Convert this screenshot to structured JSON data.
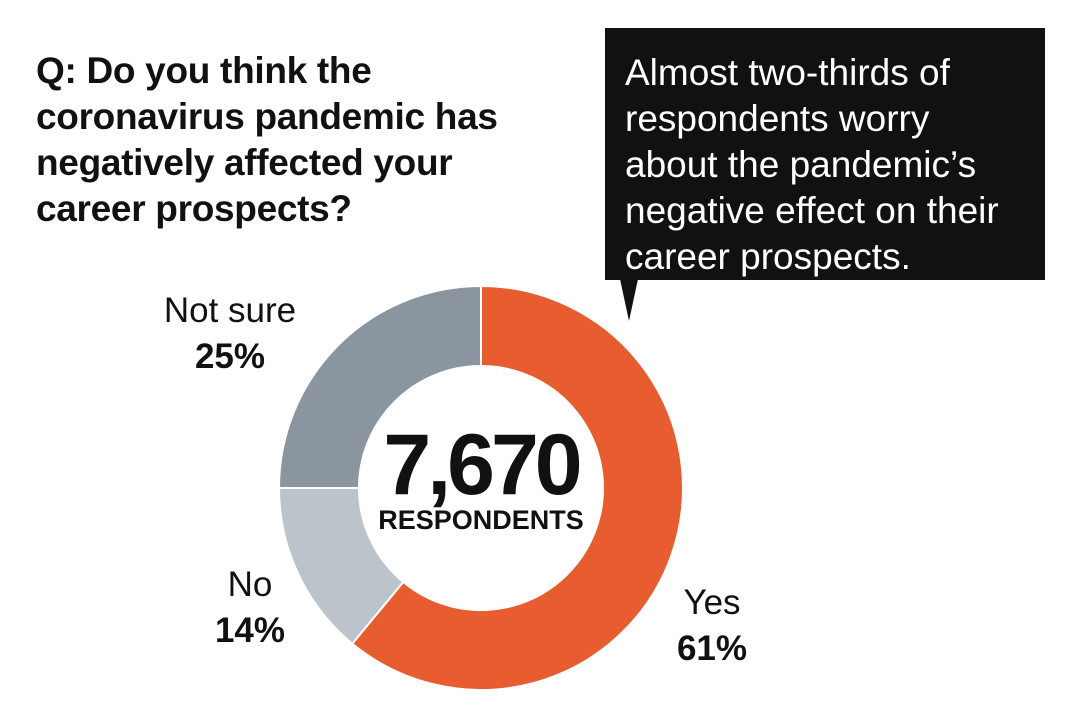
{
  "chart_data": {
    "type": "pie",
    "title": "Q: Do you think the\ncoronavirus pandemic has\nnegatively affected your\ncareer prospects?",
    "variant": "donut",
    "slices": [
      {
        "label": "Yes",
        "value": 61,
        "value_label": "61%",
        "color": "#e85d30"
      },
      {
        "label": "No",
        "value": 14,
        "value_label": "14%",
        "color": "#bdc3cb"
      },
      {
        "label": "Not sure",
        "value": 25,
        "value_label": "25%",
        "color": "#8a959f"
      }
    ],
    "center": {
      "number": "7,670",
      "caption": "RESPONDENTS"
    },
    "annotation": "Almost two-thirds of\nrespondents worry\nabout the pandemic’s\nnegative effect on their\ncareer prospects."
  }
}
